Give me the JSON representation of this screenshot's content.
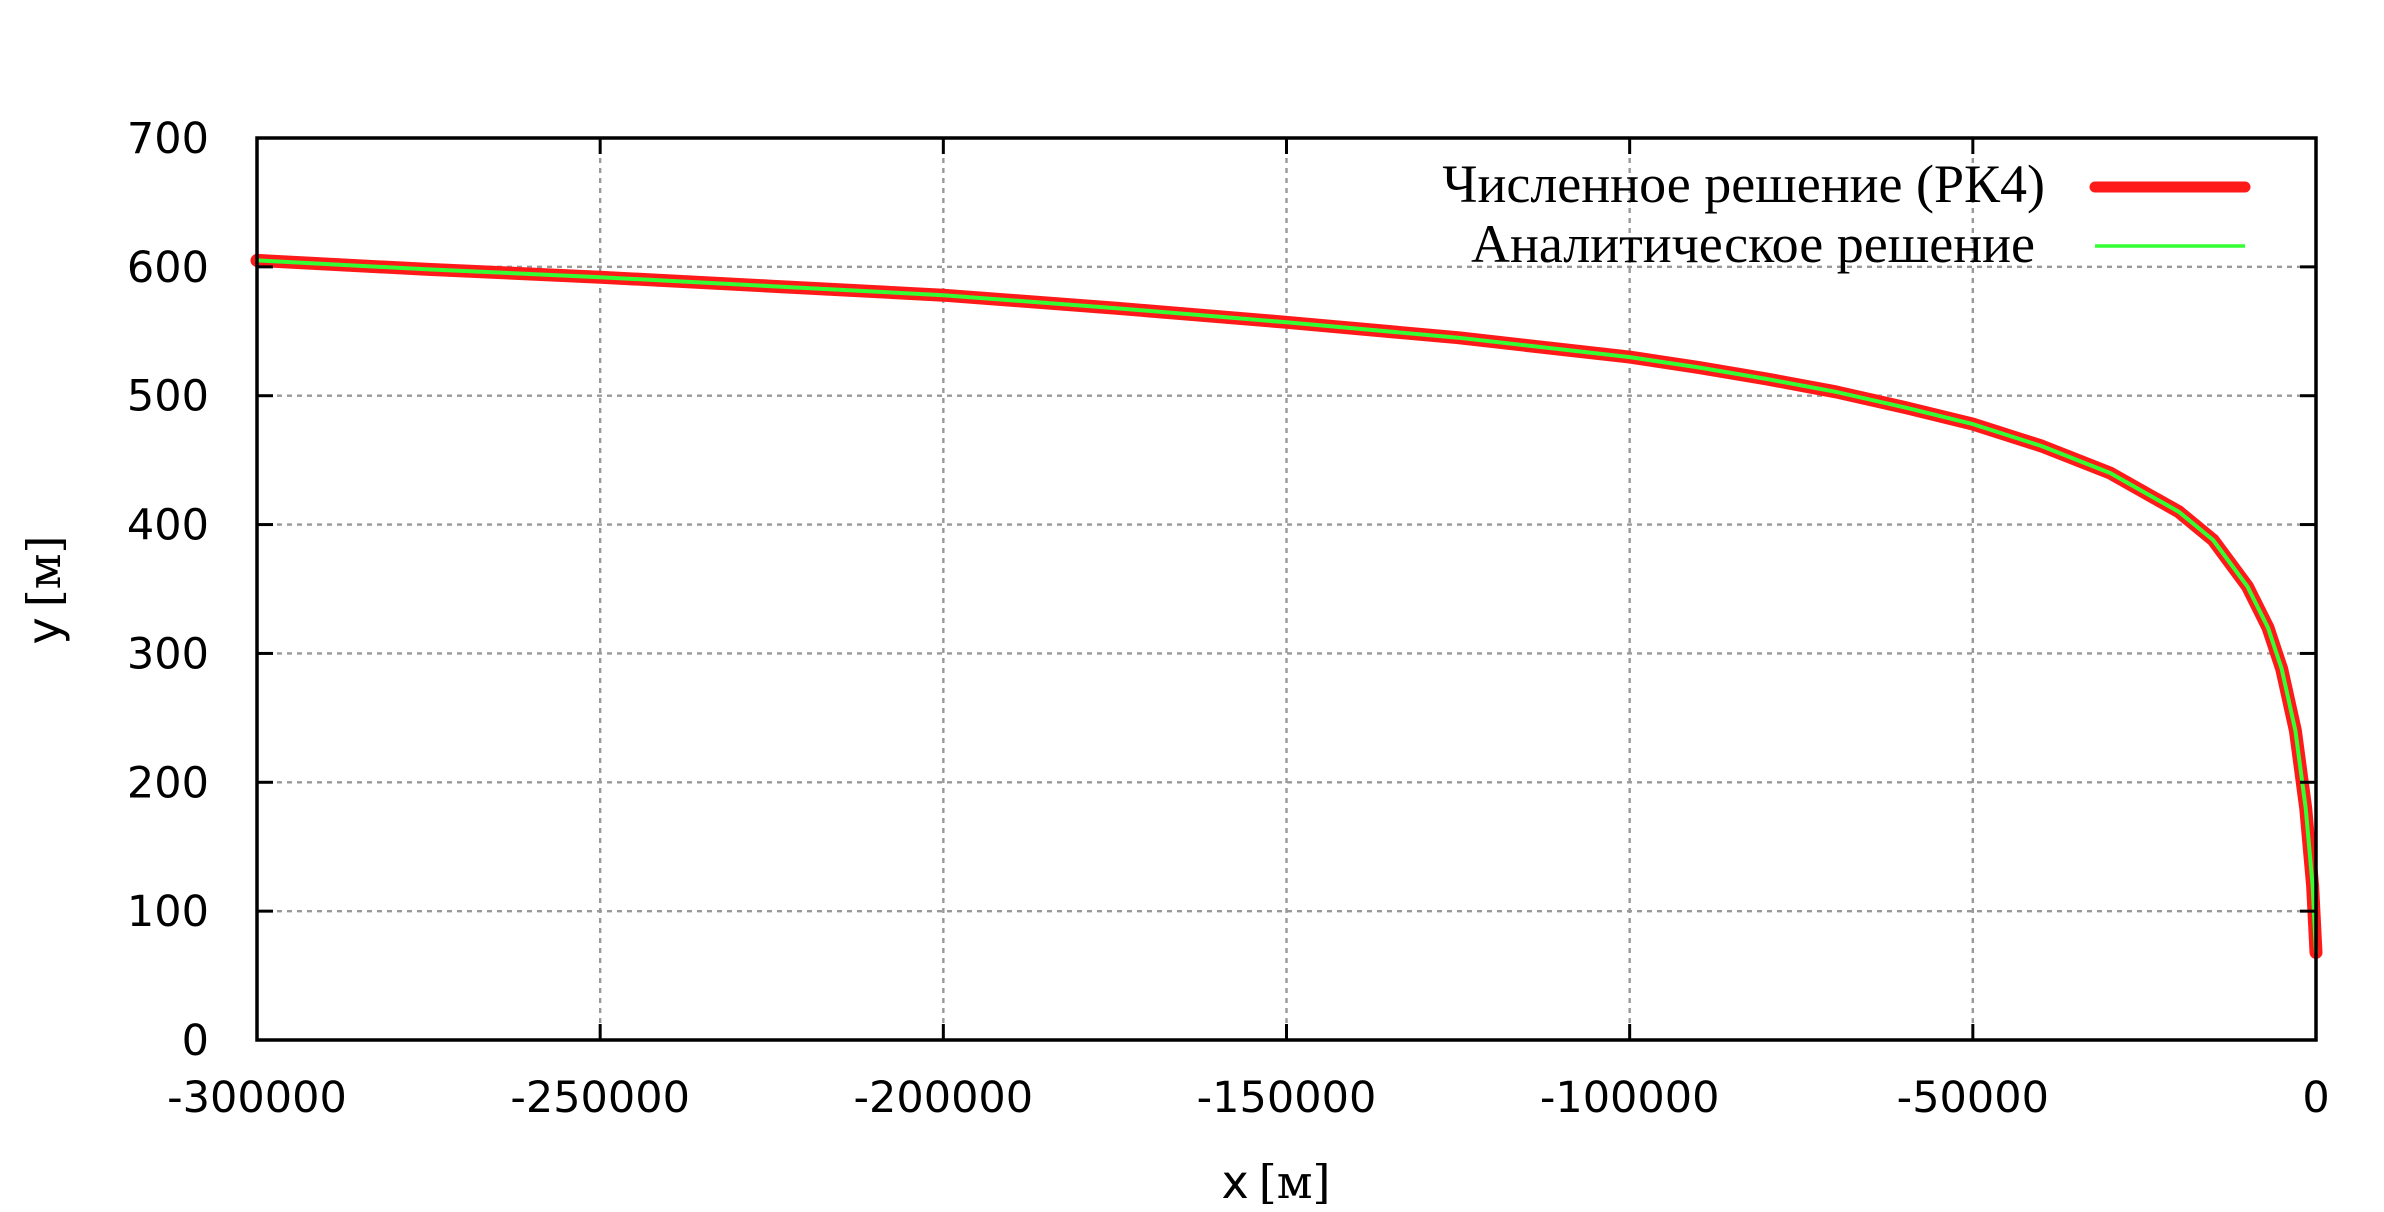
{
  "chart_data": {
    "type": "line",
    "xlabel": {
      "var": "x",
      "unit": "[м]"
    },
    "ylabel": {
      "var": "y",
      "unit": "[м]"
    },
    "xlim": [
      -300000,
      0
    ],
    "ylim": [
      0,
      700
    ],
    "x_ticks": [
      "-300000",
      "-250000",
      "-200000",
      "-150000",
      "-100000",
      "-50000",
      "0"
    ],
    "y_ticks": [
      "0",
      "100",
      "200",
      "300",
      "400",
      "500",
      "600",
      "700"
    ],
    "x_tick_values": [
      -300000,
      -250000,
      -200000,
      -150000,
      -100000,
      -50000,
      0
    ],
    "y_tick_values": [
      0,
      100,
      200,
      300,
      400,
      500,
      600,
      700
    ],
    "grid": true,
    "legend_position": "top-right",
    "series": [
      {
        "name": "Численное решение (РК4)",
        "color": "#ff1a1a",
        "x": [
          -300000,
          -275000,
          -250000,
          -225000,
          -200000,
          -175000,
          -150000,
          -125000,
          -100000,
          -90000,
          -80000,
          -70000,
          -60000,
          -50000,
          -40000,
          -30000,
          -20000,
          -15000,
          -10000,
          -7000,
          -5000,
          -3000,
          -1500,
          -500,
          0
        ],
        "y": [
          605,
          598,
          592,
          585,
          578,
          568,
          557,
          545,
          530,
          522,
          513,
          503,
          491,
          478,
          461,
          440,
          410,
          388,
          352,
          320,
          288,
          240,
          180,
          120,
          68
        ]
      },
      {
        "name": "Аналитическое решение",
        "color": "#33ff33",
        "x": [
          -300000,
          -275000,
          -250000,
          -225000,
          -200000,
          -175000,
          -150000,
          -125000,
          -100000,
          -90000,
          -80000,
          -70000,
          -60000,
          -50000,
          -40000,
          -30000,
          -20000,
          -15000,
          -10000,
          -7000,
          -5000,
          -3000,
          -1500,
          -500,
          0
        ],
        "y": [
          605,
          598,
          592,
          585,
          578,
          568,
          557,
          545,
          530,
          522,
          513,
          503,
          491,
          478,
          461,
          440,
          410,
          388,
          352,
          320,
          288,
          240,
          180,
          120,
          68
        ]
      }
    ]
  }
}
